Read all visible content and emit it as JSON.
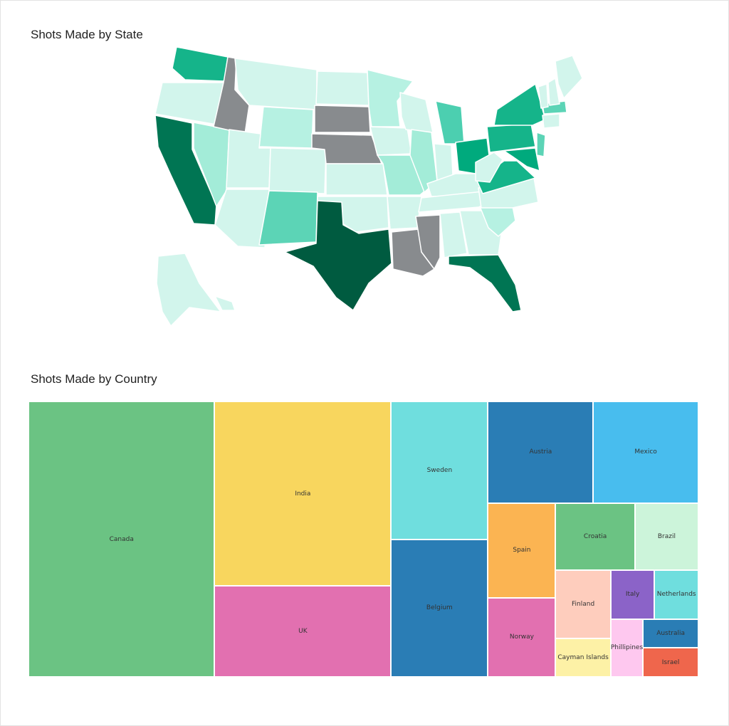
{
  "chart_data": [
    {
      "type": "choropleth",
      "title": "Shots Made by State",
      "scale": [
        "#d2f5ec",
        "#b6f1e2",
        "#a3ecd8",
        "#94e5d0",
        "#5cd4b6",
        "#4ccfb0",
        "#15b48a",
        "#00aa7d",
        "#007553",
        "#005b40"
      ],
      "no_data_color": "#888b8e",
      "regions": [
        {
          "name": "Washington",
          "level": 6
        },
        {
          "name": "Oregon",
          "level": 0
        },
        {
          "name": "California",
          "level": 8
        },
        {
          "name": "Nevada",
          "level": 2
        },
        {
          "name": "Idaho",
          "level": -1
        },
        {
          "name": "Montana",
          "level": 0
        },
        {
          "name": "Wyoming",
          "level": 1
        },
        {
          "name": "Utah",
          "level": 0
        },
        {
          "name": "Arizona",
          "level": 0
        },
        {
          "name": "Colorado",
          "level": 0
        },
        {
          "name": "New Mexico",
          "level": 4
        },
        {
          "name": "North Dakota",
          "level": 0
        },
        {
          "name": "South Dakota",
          "level": -1
        },
        {
          "name": "Nebraska",
          "level": -1
        },
        {
          "name": "Kansas",
          "level": 0
        },
        {
          "name": "Oklahoma",
          "level": 0
        },
        {
          "name": "Texas",
          "level": 9
        },
        {
          "name": "Minnesota",
          "level": 1
        },
        {
          "name": "Iowa",
          "level": 0
        },
        {
          "name": "Missouri",
          "level": 2
        },
        {
          "name": "Arkansas",
          "level": 0
        },
        {
          "name": "Louisiana",
          "level": -1
        },
        {
          "name": "Wisconsin",
          "level": 0
        },
        {
          "name": "Illinois",
          "level": 2
        },
        {
          "name": "Michigan",
          "level": 5
        },
        {
          "name": "Indiana",
          "level": 0
        },
        {
          "name": "Ohio",
          "level": 7
        },
        {
          "name": "Kentucky",
          "level": 0
        },
        {
          "name": "Tennessee",
          "level": 0
        },
        {
          "name": "Mississippi",
          "level": -1
        },
        {
          "name": "Alabama",
          "level": 0
        },
        {
          "name": "Georgia",
          "level": 0
        },
        {
          "name": "Florida",
          "level": 8
        },
        {
          "name": "South Carolina",
          "level": 1
        },
        {
          "name": "North Carolina",
          "level": 0
        },
        {
          "name": "Virginia",
          "level": 6
        },
        {
          "name": "West Virginia",
          "level": 0
        },
        {
          "name": "Pennsylvania",
          "level": 6
        },
        {
          "name": "New York",
          "level": 6
        },
        {
          "name": "Maryland",
          "level": 7
        },
        {
          "name": "New Jersey",
          "level": 4
        },
        {
          "name": "Massachusetts",
          "level": 4
        },
        {
          "name": "Vermont",
          "level": 0
        },
        {
          "name": "New Hampshire",
          "level": 0
        },
        {
          "name": "Maine",
          "level": 0
        },
        {
          "name": "Connecticut",
          "level": 0
        },
        {
          "name": "Alaska",
          "level": 0
        },
        {
          "name": "Hawaii",
          "level": 0
        }
      ]
    },
    {
      "type": "treemap",
      "title": "Shots Made by Country",
      "items": [
        {
          "label": "Canada",
          "value": 96,
          "color": "#6bc383"
        },
        {
          "label": "India",
          "value": 61,
          "color": "#f8d65e"
        },
        {
          "label": "UK",
          "value": 30,
          "color": "#e270b0"
        },
        {
          "label": "Sweden",
          "value": 25,
          "color": "#6fdede"
        },
        {
          "label": "Belgium",
          "value": 25,
          "color": "#2a7db5"
        },
        {
          "label": "Austria",
          "value": 20,
          "color": "#2a7db5"
        },
        {
          "label": "Mexico",
          "value": 20,
          "color": "#48bdee"
        },
        {
          "label": "Spain",
          "value": 12,
          "color": "#fbb452"
        },
        {
          "label": "Norway",
          "value": 10,
          "color": "#e270b0"
        },
        {
          "label": "Croatia",
          "value": 10,
          "color": "#6bc383"
        },
        {
          "label": "Finland",
          "value": 7,
          "color": "#fecdbd"
        },
        {
          "label": "Brazil",
          "value": 8,
          "color": "#ccf4da"
        },
        {
          "label": "Cayman Islands",
          "value": 4,
          "color": "#fdf1a6"
        },
        {
          "label": "Italy",
          "value": 4,
          "color": "#8b63c8"
        },
        {
          "label": "Netherlands",
          "value": 4,
          "color": "#6fdede"
        },
        {
          "label": "Phillipines",
          "value": 3.5,
          "color": "#fec8ef"
        },
        {
          "label": "Australia",
          "value": 3,
          "color": "#2a7db5"
        },
        {
          "label": "Israel",
          "value": 3,
          "color": "#ef664c"
        }
      ]
    }
  ]
}
